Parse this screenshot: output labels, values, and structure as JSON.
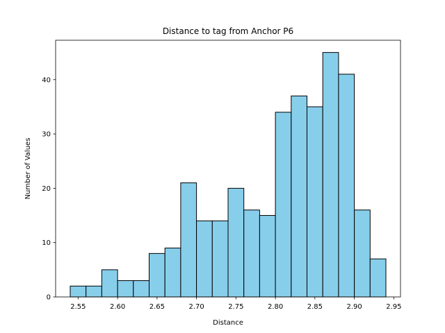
{
  "chart_data": {
    "type": "bar",
    "title": "Distance to tag from Anchor P6",
    "xlabel": "Distance",
    "ylabel": "Number of Values",
    "xlim": [
      2.5215,
      2.9585
    ],
    "ylim": [
      0,
      47.25
    ],
    "bin_edges": [
      2.54,
      2.56,
      2.58,
      2.6,
      2.62,
      2.64,
      2.66,
      2.68,
      2.7,
      2.72,
      2.74,
      2.76,
      2.78,
      2.8,
      2.82,
      2.84,
      2.86,
      2.88,
      2.9,
      2.92,
      2.94
    ],
    "values": [
      2,
      2,
      5,
      3,
      3,
      8,
      9,
      21,
      14,
      14,
      20,
      16,
      15,
      34,
      37,
      35,
      45,
      41,
      16,
      7
    ],
    "x_ticks": [
      2.55,
      2.6,
      2.65,
      2.7,
      2.75,
      2.8,
      2.85,
      2.9,
      2.95
    ],
    "x_tick_labels": [
      "2.55",
      "2.60",
      "2.65",
      "2.70",
      "2.75",
      "2.80",
      "2.85",
      "2.90",
      "2.95"
    ],
    "y_ticks": [
      0,
      10,
      20,
      30,
      40
    ],
    "y_tick_labels": [
      "0",
      "10",
      "20",
      "30",
      "40"
    ],
    "grid": false,
    "bar_color": "#87ceeb",
    "edge_color": "#000000"
  }
}
